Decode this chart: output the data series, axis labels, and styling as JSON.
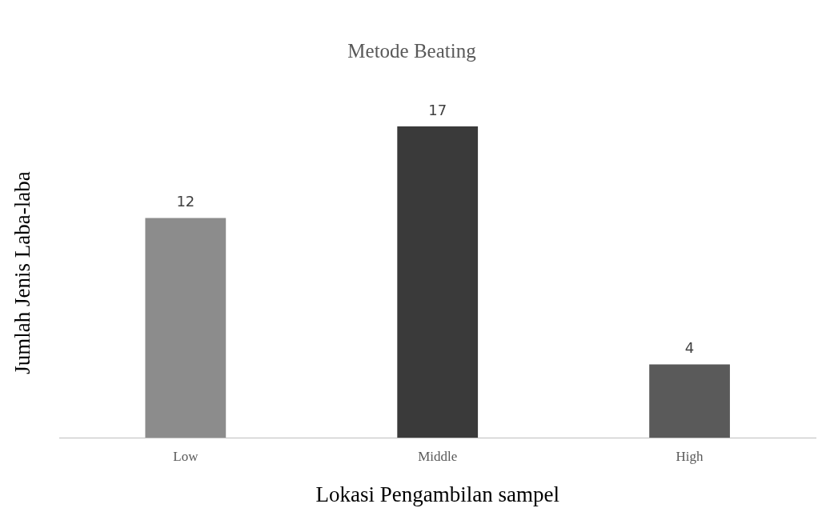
{
  "chart_data": {
    "type": "bar",
    "title": "Metode Beating",
    "xlabel": "Lokasi Pengambilan sampel",
    "ylabel": "Jumlah Jenis Laba-laba",
    "categories": [
      "Low",
      "Middle",
      "High"
    ],
    "values": [
      12,
      17,
      4
    ],
    "colors": [
      "#8c8c8c",
      "#3a3a3a",
      "#5a5a5a"
    ],
    "data_labels": true,
    "grid": false,
    "legend": false
  }
}
